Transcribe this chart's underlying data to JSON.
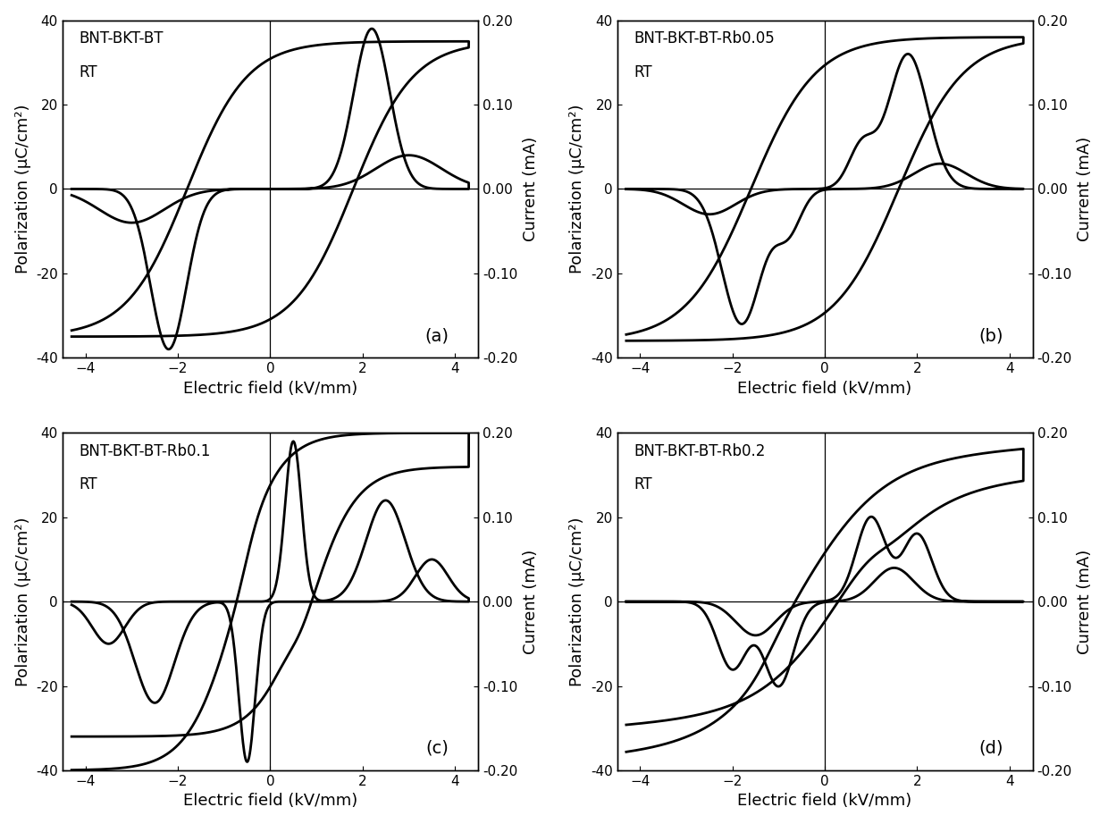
{
  "panels": [
    {
      "label": "(a)",
      "title_line1": "BNT-BKT-BT",
      "title_line2": "RT",
      "xlim": [
        -4.5,
        4.5
      ],
      "ylim": [
        -40,
        40
      ],
      "current_ylim": [
        -0.2,
        0.2
      ],
      "xticks": [
        -4,
        -2,
        0,
        2,
        4
      ],
      "yticks": [
        -40,
        -20,
        0,
        20,
        40
      ],
      "current_yticks": [
        -0.2,
        -0.1,
        0.0,
        0.1,
        0.2
      ]
    },
    {
      "label": "(b)",
      "title_line1": "BNT-BKT-BT-Rb0.05",
      "title_line2": "RT",
      "xlim": [
        -4.5,
        4.5
      ],
      "ylim": [
        -40,
        40
      ],
      "current_ylim": [
        -0.2,
        0.2
      ],
      "xticks": [
        -4,
        -2,
        0,
        2,
        4
      ],
      "yticks": [
        -40,
        -20,
        0,
        20,
        40
      ],
      "current_yticks": [
        -0.2,
        -0.1,
        0.0,
        0.1,
        0.2
      ]
    },
    {
      "label": "(c)",
      "title_line1": "BNT-BKT-BT-Rb0.1",
      "title_line2": "RT",
      "xlim": [
        -4.5,
        4.5
      ],
      "ylim": [
        -40,
        40
      ],
      "current_ylim": [
        -0.2,
        0.2
      ],
      "xticks": [
        -4,
        -2,
        0,
        2,
        4
      ],
      "yticks": [
        -40,
        -20,
        0,
        20,
        40
      ],
      "current_yticks": [
        -0.2,
        -0.1,
        0.0,
        0.1,
        0.2
      ]
    },
    {
      "label": "(d)",
      "title_line1": "BNT-BKT-BT-Rb0.2",
      "title_line2": "RT",
      "xlim": [
        -4.5,
        4.5
      ],
      "ylim": [
        -40,
        40
      ],
      "current_ylim": [
        -0.2,
        0.2
      ],
      "xticks": [
        -4,
        -2,
        0,
        2,
        4
      ],
      "yticks": [
        -40,
        -20,
        0,
        20,
        40
      ],
      "current_yticks": [
        -0.2,
        -0.1,
        0.0,
        0.1,
        0.2
      ]
    }
  ],
  "xlabel": "Electric field (kV/mm)",
  "ylabel": "Polarization (μC/cm²)",
  "right_ylabel": "Current (mA)",
  "line_color": "black",
  "line_width": 2.0,
  "bg_color": "white",
  "label_fontsize": 13,
  "tick_fontsize": 11,
  "title_fontsize": 12
}
